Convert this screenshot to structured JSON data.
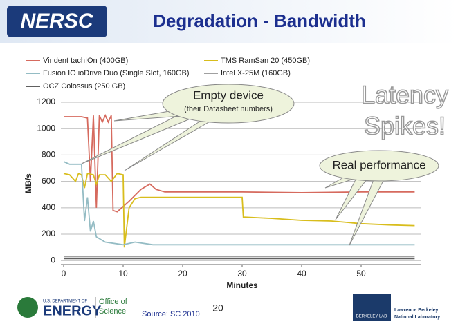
{
  "header": {
    "logo": "NERSC",
    "title": "Degradation - Bandwidth"
  },
  "chart_data": {
    "type": "line",
    "ylabel": "MB/s",
    "xlabel": "Minutes",
    "xlim": [
      0,
      60
    ],
    "xticks": [
      0,
      10,
      20,
      30,
      40,
      50
    ],
    "ylim": [
      -30,
      1200
    ],
    "yticks": [
      0,
      200,
      400,
      600,
      800,
      1000,
      1200
    ],
    "grid": true,
    "series": [
      {
        "name": "Virident tachIOn (400GB)",
        "color": "#d66a5e",
        "x": [
          0,
          3,
          4,
          4.5,
          5,
          5.5,
          6,
          6.5,
          7,
          7.5,
          8,
          8.3,
          9,
          11,
          13,
          14.5,
          15.5,
          17,
          20,
          30,
          40,
          50,
          59
        ],
        "values": [
          1090,
          1090,
          1080,
          600,
          1100,
          400,
          1100,
          1050,
          1100,
          1050,
          1100,
          380,
          370,
          450,
          540,
          580,
          540,
          520,
          520,
          520,
          515,
          520,
          520
        ]
      },
      {
        "name": "TMS RamSan 20 (450GB)",
        "color": "#d8bd1c",
        "x": [
          0,
          1,
          2,
          2.5,
          3,
          3.5,
          4,
          5,
          5.5,
          6,
          7,
          8,
          9,
          10,
          10.2,
          11,
          12,
          13,
          30,
          30.2,
          35,
          40,
          45,
          50,
          55,
          59
        ],
        "values": [
          660,
          650,
          600,
          660,
          650,
          550,
          660,
          650,
          580,
          650,
          650,
          600,
          660,
          650,
          100,
          400,
          470,
          480,
          480,
          330,
          320,
          305,
          300,
          280,
          270,
          265
        ]
      },
      {
        "name": "Fusion IO ioDrive Duo (Single Slot, 160GB)",
        "color": "#94bcc4",
        "x": [
          0,
          1,
          3,
          3.5,
          4,
          4.5,
          5,
          5.5,
          7,
          10,
          12,
          15,
          30,
          59
        ],
        "values": [
          750,
          730,
          730,
          300,
          480,
          220,
          300,
          180,
          140,
          120,
          140,
          120,
          120,
          120
        ]
      },
      {
        "name": "Intel X-25M (160GB)",
        "color": "#a0a0a0",
        "x": [
          0,
          59
        ],
        "values": [
          30,
          30
        ]
      },
      {
        "name": "OCZ Colossus (250 GB)",
        "color": "#606060",
        "x": [
          0,
          59
        ],
        "values": [
          15,
          15
        ]
      }
    ]
  },
  "annotations": {
    "empty_device": "Empty device",
    "datasheet": "(their Datasheet numbers)",
    "latency_1": "Latency",
    "latency_2": "Spikes!",
    "real_performance": "Real performance"
  },
  "footer": {
    "doe_small": "U.S. DEPARTMENT OF",
    "doe": "ENERGY",
    "office_1": "Office of",
    "office_2": "Science",
    "source": "Source: SC 2010",
    "page": "20",
    "lab_logo": "BERKELEY LAB",
    "lab_1": "Lawrence Berkeley",
    "lab_2": "National Laboratory"
  }
}
